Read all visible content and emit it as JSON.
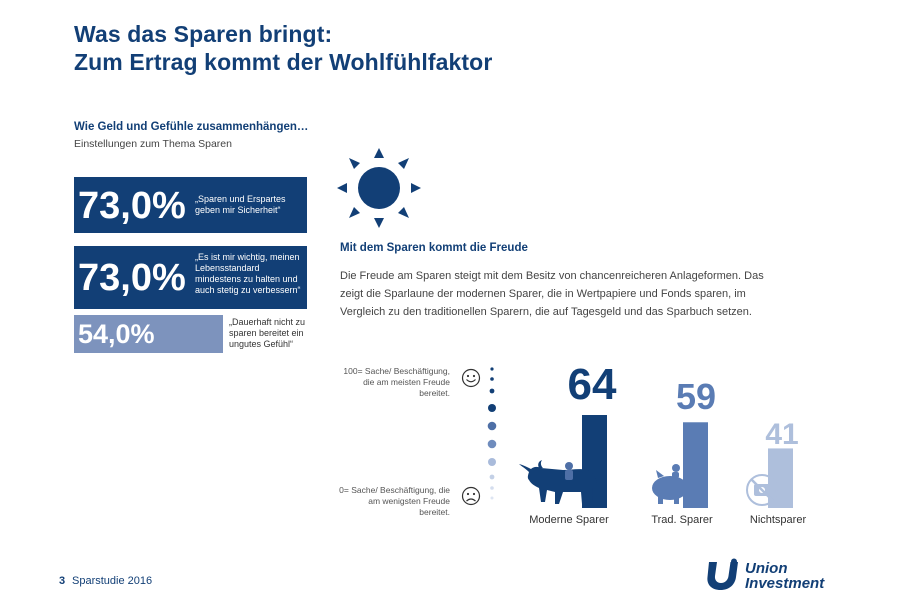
{
  "header": {
    "title_line1": "Was das Sparen bringt:",
    "title_line2": "Zum Ertrag kommt der Wohlfühlfaktor"
  },
  "attitudes": {
    "heading": "Wie Geld und Gefühle zusammenhängen…",
    "subheading": "Einstellungen zum Thema Sparen",
    "items": [
      {
        "value": "73,0%",
        "quote": "„Sparen und Erspartes geben mir Sicherheit“"
      },
      {
        "value": "73,0%",
        "quote": "„Es ist mir wichtig, meinen Lebensstandard mindestens zu halten und auch stetig zu verbessern“"
      },
      {
        "value": "54,0%",
        "quote": "„Dauerhaft nicht zu sparen bereitet ein ungutes Gefühl“"
      }
    ]
  },
  "section": {
    "heading": "Mit dem Sparen kommt die Freude",
    "paragraph": "Die Freude am Sparen steigt mit dem Besitz von chancenreicheren Anlageformen. Das zeigt die Sparlaune der modernen Sparer, die in Wertpapiere und Fonds sparen, im Vergleich zu den traditionellen Sparern, die auf Tagesgeld und das Sparbuch setzen."
  },
  "scale": {
    "top_label": "100= Sache/ Beschäftigung, die am meisten Freude bereitet.",
    "bottom_label": "0= Sache/ Beschäftigung, die am wenigsten Freude bereitet."
  },
  "chart_data": {
    "type": "bar",
    "categories": [
      "Moderne Sparer",
      "Trad. Sparer",
      "Nichtsparer"
    ],
    "values": [
      64,
      59,
      41
    ],
    "value_labels": [
      "64",
      "59",
      "41"
    ],
    "ylim": [
      0,
      100
    ],
    "colors": [
      "#123f76",
      "#5a7cb4",
      "#aebfdc"
    ]
  },
  "footer": {
    "page": "3",
    "text": "Sparstudie 2016",
    "logo_line1": "Union",
    "logo_line2": "Investment"
  },
  "colors": {
    "navy": "#123f76",
    "mid_blue": "#5a7cb4",
    "light_blue": "#7d93bd"
  },
  "icons": [
    "sun-icon",
    "smiley-happy-icon",
    "smiley-sad-icon",
    "bull-icon",
    "piggy-bank-icon",
    "no-money-icon",
    "union-investment-logo"
  ]
}
